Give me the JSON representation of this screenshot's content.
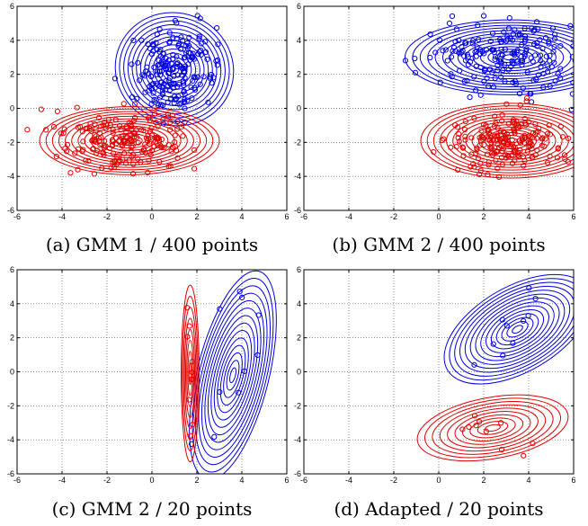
{
  "colors": {
    "class_a": "#e00000",
    "class_b": "#0000e0",
    "grid": "#555555"
  },
  "chart_data": [
    {
      "type": "scatter",
      "caption": "(a) GMM 1 / 400 points",
      "xlim": [
        -6,
        6
      ],
      "ylim": [
        -6,
        6
      ],
      "xticks": [
        "-6",
        "-4",
        "-2",
        "0",
        "2",
        "4",
        "6"
      ],
      "yticks": [
        "-6",
        "-4",
        "-2",
        "0",
        "2",
        "4",
        "6"
      ],
      "grid": true,
      "series": [
        {
          "color": "class_b",
          "points": 200,
          "center": [
            1.0,
            2.2
          ],
          "spread": [
            0.9,
            1.2
          ],
          "rho": 0.1,
          "contours": {
            "center": [
              1.0,
              2.3
            ],
            "radii": [
              2.5,
              3.5
            ],
            "angle": 70,
            "levels": 14
          }
        },
        {
          "color": "class_a",
          "points": 200,
          "center": [
            -1.3,
            -1.9
          ],
          "spread": [
            1.4,
            0.9
          ],
          "rho": 0.0,
          "contours": {
            "center": [
              -1.0,
              -1.9
            ],
            "radii": [
              4.0,
              2.0
            ],
            "angle": 0,
            "levels": 14
          }
        }
      ]
    },
    {
      "type": "scatter",
      "caption": "(b) GMM 2 / 400 points",
      "xlim": [
        -6,
        6
      ],
      "ylim": [
        -6,
        6
      ],
      "xticks": [
        "-6",
        "-4",
        "-2",
        "0",
        "2",
        "4",
        "6"
      ],
      "yticks": [
        "-6",
        "-4",
        "-2",
        "0",
        "2",
        "4",
        "6"
      ],
      "grid": true,
      "series": [
        {
          "color": "class_b",
          "points": 200,
          "center": [
            2.8,
            3.0
          ],
          "spread": [
            1.8,
            1.0
          ],
          "rho": 0.0,
          "contours": {
            "center": [
              3.2,
              3.0
            ],
            "radii": [
              4.7,
              2.2
            ],
            "angle": 0,
            "levels": 14
          }
        },
        {
          "color": "class_a",
          "points": 200,
          "center": [
            3.1,
            -1.9
          ],
          "spread": [
            1.3,
            0.8
          ],
          "rho": 0.0,
          "contours": {
            "center": [
              3.2,
              -1.9
            ],
            "radii": [
              4.0,
              2.2
            ],
            "angle": 0,
            "levels": 14
          }
        }
      ]
    },
    {
      "type": "scatter",
      "caption": "(c) GMM 2 / 20 points",
      "xlim": [
        -6,
        6
      ],
      "ylim": [
        -6,
        6
      ],
      "xticks": [
        "-6",
        "-4",
        "-2",
        "0",
        "2",
        "4",
        "6"
      ],
      "yticks": [
        "-6",
        "-4",
        "-2",
        "0",
        "2",
        "4",
        "6"
      ],
      "grid": true,
      "series": [
        {
          "color": "class_b",
          "points": 10,
          "center": [
            3.6,
            0.2
          ],
          "spread": [
            0.9,
            3.0
          ],
          "rho": 0.6,
          "contours": {
            "center": [
              3.6,
              -0.2
            ],
            "radii": [
              1.6,
              6.3
            ],
            "angle": -14,
            "levels": 14
          }
        },
        {
          "color": "class_a",
          "points": 10,
          "center": [
            1.7,
            -0.5
          ],
          "spread": [
            0.1,
            2.5
          ],
          "rho": 0.0,
          "contours": {
            "center": [
              1.7,
              -0.1
            ],
            "radii": [
              0.4,
              5.2
            ],
            "angle": 0,
            "levels": 8
          }
        }
      ]
    },
    {
      "type": "scatter",
      "caption": "(d) Adapted / 20 points",
      "xlim": [
        -6,
        6
      ],
      "ylim": [
        -6,
        6
      ],
      "xticks": [
        "-6",
        "-4",
        "-2",
        "0",
        "2",
        "4",
        "6"
      ],
      "yticks": [
        "-6",
        "-4",
        "-2",
        "0",
        "2",
        "4",
        "6"
      ],
      "grid": true,
      "series": [
        {
          "color": "class_b",
          "points": 10,
          "center": [
            3.3,
            2.4
          ],
          "spread": [
            1.0,
            1.3
          ],
          "rho": 0.4,
          "contours": {
            "center": [
              3.5,
              2.5
            ],
            "radii": [
              3.6,
              2.5
            ],
            "angle": 30,
            "levels": 14
          }
        },
        {
          "color": "class_a",
          "points": 10,
          "center": [
            2.5,
            -3.3
          ],
          "spread": [
            0.9,
            0.8
          ],
          "rho": 0.0,
          "contours": {
            "center": [
              2.4,
              -3.3
            ],
            "radii": [
              3.4,
              1.8
            ],
            "angle": 10,
            "levels": 10
          }
        }
      ]
    }
  ]
}
